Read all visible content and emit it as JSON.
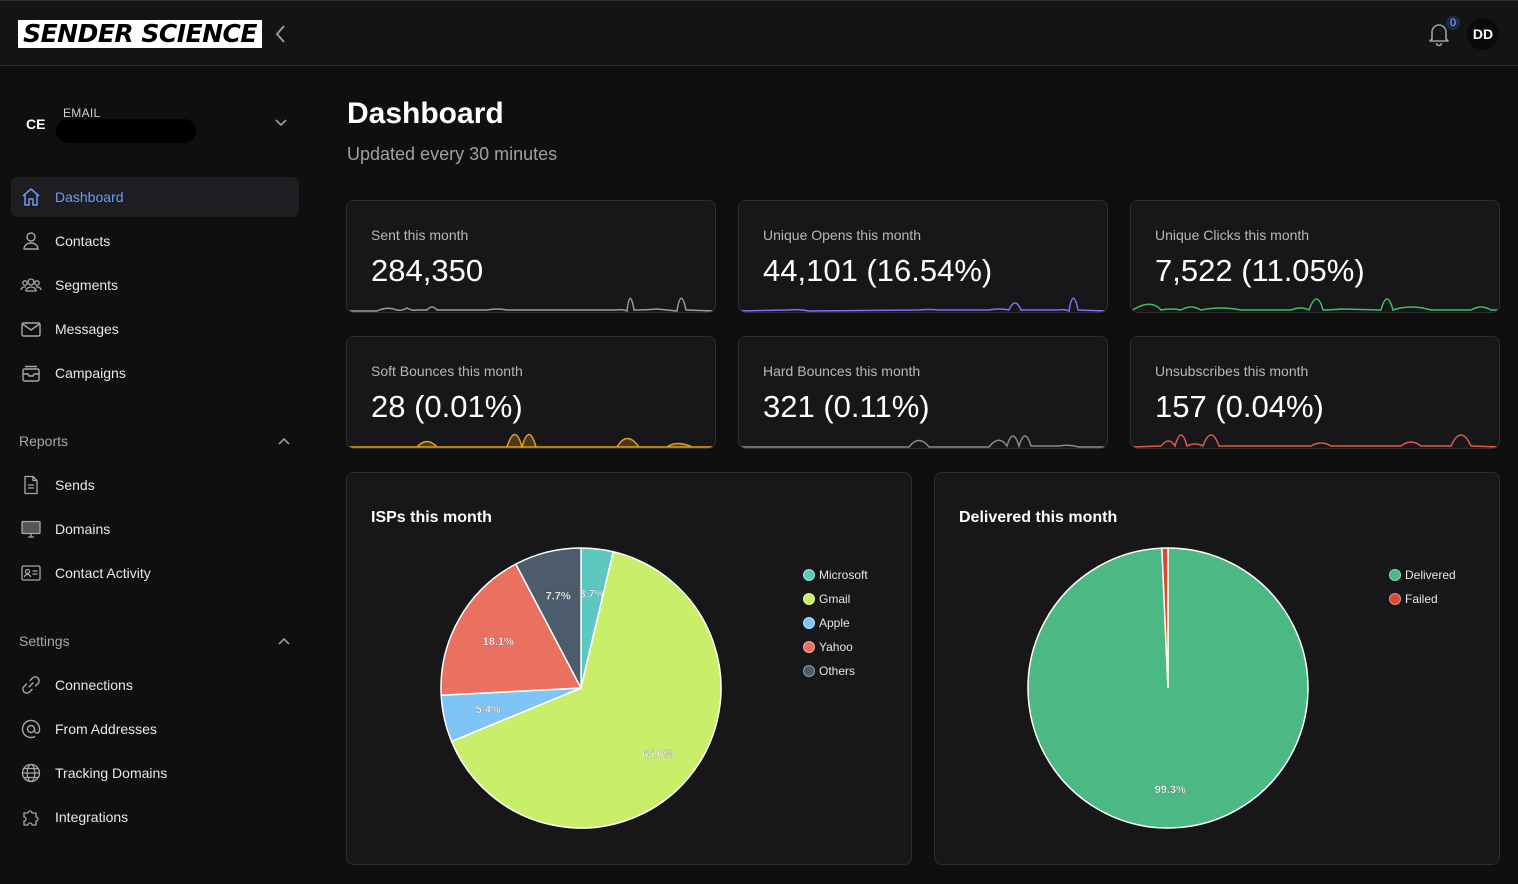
{
  "header": {
    "logo_text": "SENDER SCIENCE",
    "notification_count": "0",
    "avatar_initials": "DD"
  },
  "account": {
    "initials": "CE",
    "label": "EMAIL"
  },
  "nav": {
    "main": [
      {
        "label": "Dashboard",
        "icon": "home-icon",
        "active": true
      },
      {
        "label": "Contacts",
        "icon": "user-icon"
      },
      {
        "label": "Segments",
        "icon": "users-group-icon"
      },
      {
        "label": "Messages",
        "icon": "envelope-icon"
      },
      {
        "label": "Campaigns",
        "icon": "inbox-tray-icon"
      }
    ],
    "reports_label": "Reports",
    "reports": [
      {
        "label": "Sends",
        "icon": "document-icon"
      },
      {
        "label": "Domains",
        "icon": "monitor-icon"
      },
      {
        "label": "Contact Activity",
        "icon": "id-card-icon"
      }
    ],
    "settings_label": "Settings",
    "settings": [
      {
        "label": "Connections",
        "icon": "link-icon"
      },
      {
        "label": "From Addresses",
        "icon": "at-sign-icon"
      },
      {
        "label": "Tracking Domains",
        "icon": "globe-icon"
      },
      {
        "label": "Integrations",
        "icon": "puzzle-icon"
      }
    ]
  },
  "page": {
    "title": "Dashboard",
    "subtitle": "Updated every 30 minutes"
  },
  "stats": [
    {
      "label": "Sent this month",
      "value": "284,350",
      "color": "#9a9a9a"
    },
    {
      "label": "Unique Opens this month",
      "value": "44,101 (16.54%)",
      "color": "#8b6cf6"
    },
    {
      "label": "Unique Clicks this month",
      "value": "7,522 (11.05%)",
      "color": "#3fbf5f"
    },
    {
      "label": "Soft Bounces this month",
      "value": "28 (0.01%)",
      "color": "#e0a020"
    },
    {
      "label": "Hard Bounces this month",
      "value": "321 (0.11%)",
      "color": "#8a8a8a"
    },
    {
      "label": "Unsubscribes this month",
      "value": "157 (0.04%)",
      "color": "#e05a48"
    }
  ],
  "chart_data": [
    {
      "type": "pie",
      "title": "ISPs this month",
      "categories": [
        "Microsoft",
        "Gmail",
        "Apple",
        "Yahoo",
        "Others"
      ],
      "values": [
        3.7,
        65.0,
        5.4,
        18.1,
        7.7
      ],
      "labels": [
        "3.7%",
        "65.0%",
        "5.4%",
        "18.1%",
        "7.7%"
      ],
      "colors": [
        "#5cc8c0",
        "#c8ee6a",
        "#7ec4f4",
        "#ea7060",
        "#4c5c6c"
      ],
      "legend": "right"
    },
    {
      "type": "pie",
      "title": "Delivered this month",
      "categories": [
        "Delivered",
        "Failed"
      ],
      "values": [
        99.3,
        0.7
      ],
      "labels": [
        "99.3%",
        ""
      ],
      "colors": [
        "#4cb884",
        "#d84a34"
      ],
      "legend": "right"
    }
  ]
}
